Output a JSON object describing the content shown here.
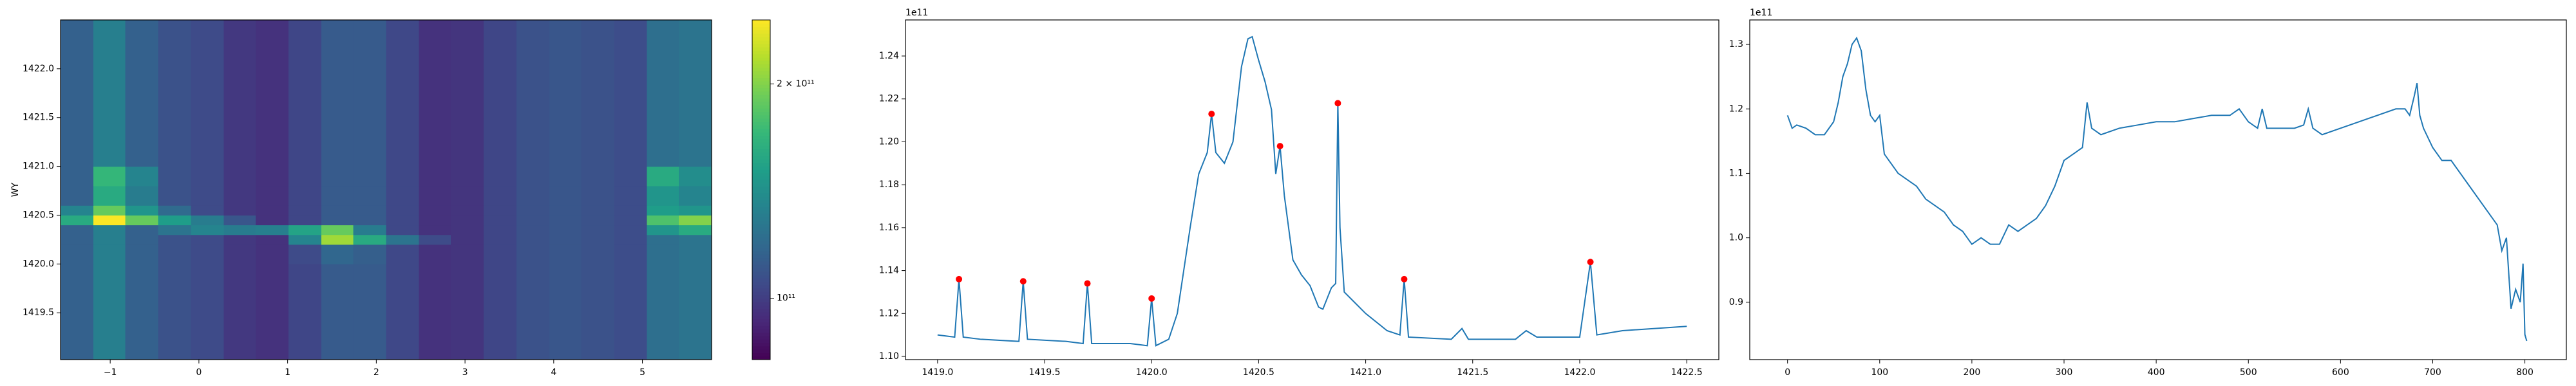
{
  "chart_data": [
    {
      "type": "heatmap",
      "ylabel": "WY",
      "colormap": "viridis",
      "x": [
        -1.56,
        -1.19,
        -0.83,
        -0.46,
        -0.09,
        0.28,
        0.64,
        1.01,
        1.38,
        1.74,
        2.11,
        2.48,
        2.84,
        3.21,
        3.58,
        3.95,
        4.31,
        4.68,
        5.05,
        5.41,
        5.78
      ],
      "y": [
        1419.02,
        1419.5,
        1420.0,
        1420.2,
        1420.3,
        1420.4,
        1420.5,
        1420.6,
        1420.8,
        1421.0,
        1421.5,
        1422.0,
        1422.5
      ],
      "z": [
        [
          115000000000.0,
          132000000000.0,
          115000000000.0,
          108000000000.0,
          105000000000.0,
          98000000000.0,
          96000000000.0,
          103000000000.0,
          112000000000.0,
          112000000000.0,
          104000000000.0,
          96000000000.0,
          97000000000.0,
          103000000000.0,
          108000000000.0,
          110000000000.0,
          108000000000.0,
          106000000000.0,
          122000000000.0,
          125000000000.0
        ],
        [
          115000000000.0,
          132000000000.0,
          115000000000.0,
          108000000000.0,
          105000000000.0,
          98000000000.0,
          96000000000.0,
          103000000000.0,
          112000000000.0,
          112000000000.0,
          104000000000.0,
          96000000000.0,
          97000000000.0,
          103000000000.0,
          108000000000.0,
          110000000000.0,
          108000000000.0,
          106000000000.0,
          122000000000.0,
          125000000000.0
        ],
        [
          115000000000.0,
          132000000000.0,
          115000000000.0,
          108000000000.0,
          105000000000.0,
          98000000000.0,
          96000000000.0,
          105000000000.0,
          118000000000.0,
          114000000000.0,
          104000000000.0,
          96000000000.0,
          97000000000.0,
          103000000000.0,
          108000000000.0,
          110000000000.0,
          108000000000.0,
          106000000000.0,
          122000000000.0,
          125000000000.0
        ],
        [
          115000000000.0,
          132000000000.0,
          115000000000.0,
          108000000000.0,
          105000000000.0,
          98000000000.0,
          96000000000.0,
          135000000000.0,
          210000000000.0,
          160000000000.0,
          125000000000.0,
          105000000000.0,
          97000000000.0,
          103000000000.0,
          108000000000.0,
          110000000000.0,
          108000000000.0,
          106000000000.0,
          122000000000.0,
          125000000000.0
        ],
        [
          115000000000.0,
          132000000000.0,
          115000000000.0,
          125000000000.0,
          135000000000.0,
          130000000000.0,
          132000000000.0,
          155000000000.0,
          190000000000.0,
          130000000000.0,
          104000000000.0,
          96000000000.0,
          97000000000.0,
          103000000000.0,
          108000000000.0,
          110000000000.0,
          108000000000.0,
          106000000000.0,
          145000000000.0,
          160000000000.0
        ],
        [
          160000000000.0,
          245000000000.0,
          190000000000.0,
          150000000000.0,
          130000000000.0,
          110000000000.0,
          96000000000.0,
          103000000000.0,
          112000000000.0,
          112000000000.0,
          104000000000.0,
          96000000000.0,
          97000000000.0,
          103000000000.0,
          108000000000.0,
          110000000000.0,
          108000000000.0,
          106000000000.0,
          180000000000.0,
          200000000000.0
        ],
        [
          135000000000.0,
          190000000000.0,
          145000000000.0,
          120000000000.0,
          105000000000.0,
          98000000000.0,
          96000000000.0,
          103000000000.0,
          112000000000.0,
          112000000000.0,
          104000000000.0,
          96000000000.0,
          97000000000.0,
          103000000000.0,
          108000000000.0,
          110000000000.0,
          108000000000.0,
          106000000000.0,
          150000000000.0,
          145000000000.0
        ],
        [
          115000000000.0,
          160000000000.0,
          130000000000.0,
          108000000000.0,
          105000000000.0,
          98000000000.0,
          96000000000.0,
          103000000000.0,
          112000000000.0,
          112000000000.0,
          104000000000.0,
          96000000000.0,
          97000000000.0,
          103000000000.0,
          108000000000.0,
          110000000000.0,
          108000000000.0,
          106000000000.0,
          145000000000.0,
          135000000000.0
        ],
        [
          115000000000.0,
          170000000000.0,
          135000000000.0,
          108000000000.0,
          105000000000.0,
          98000000000.0,
          96000000000.0,
          103000000000.0,
          112000000000.0,
          112000000000.0,
          104000000000.0,
          96000000000.0,
          97000000000.0,
          103000000000.0,
          108000000000.0,
          110000000000.0,
          108000000000.0,
          106000000000.0,
          160000000000.0,
          140000000000.0
        ],
        [
          115000000000.0,
          132000000000.0,
          115000000000.0,
          108000000000.0,
          105000000000.0,
          98000000000.0,
          96000000000.0,
          103000000000.0,
          112000000000.0,
          112000000000.0,
          104000000000.0,
          96000000000.0,
          97000000000.0,
          103000000000.0,
          108000000000.0,
          110000000000.0,
          108000000000.0,
          106000000000.0,
          122000000000.0,
          125000000000.0
        ],
        [
          115000000000.0,
          132000000000.0,
          115000000000.0,
          108000000000.0,
          105000000000.0,
          98000000000.0,
          96000000000.0,
          103000000000.0,
          112000000000.0,
          112000000000.0,
          104000000000.0,
          96000000000.0,
          97000000000.0,
          103000000000.0,
          108000000000.0,
          110000000000.0,
          108000000000.0,
          106000000000.0,
          122000000000.0,
          125000000000.0
        ],
        [
          115000000000.0,
          132000000000.0,
          115000000000.0,
          108000000000.0,
          105000000000.0,
          98000000000.0,
          96000000000.0,
          103000000000.0,
          112000000000.0,
          112000000000.0,
          104000000000.0,
          96000000000.0,
          97000000000.0,
          103000000000.0,
          108000000000.0,
          110000000000.0,
          108000000000.0,
          106000000000.0,
          122000000000.0,
          125000000000.0
        ]
      ],
      "xlim": [
        -1.56,
        5.78
      ],
      "xticks": [
        {
          "value": -1,
          "label": "−1"
        },
        0,
        1,
        2,
        3,
        4,
        5
      ],
      "ylim": [
        1419.02,
        1422.5
      ],
      "yticks": [
        1419.5,
        {
          "value": 1420,
          "label": "1420.0"
        },
        1420.5,
        {
          "value": 1421,
          "label": "1421.0"
        },
        1421.5,
        {
          "value": 1422,
          "label": "1422.0"
        }
      ],
      "colorbar": {
        "log": true,
        "lim": [
          82000000000.0,
          246000000000.0
        ],
        "ticks": [
          {
            "value": 100000000000.0,
            "label": "10¹¹"
          },
          {
            "value": 200000000000.0,
            "label": "2 × 10¹¹"
          }
        ]
      }
    },
    {
      "type": "line",
      "color": "#1f77b4",
      "offset_text": "1e11",
      "x": [
        1419.0,
        1419.08,
        1419.1,
        1419.12,
        1419.2,
        1419.38,
        1419.4,
        1419.42,
        1419.6,
        1419.68,
        1419.7,
        1419.72,
        1419.9,
        1419.98,
        1420.0,
        1420.02,
        1420.08,
        1420.12,
        1420.18,
        1420.22,
        1420.26,
        1420.28,
        1420.3,
        1420.34,
        1420.38,
        1420.42,
        1420.45,
        1420.47,
        1420.5,
        1420.53,
        1420.56,
        1420.58,
        1420.6,
        1420.62,
        1420.66,
        1420.7,
        1420.74,
        1420.78,
        1420.8,
        1420.84,
        1420.86,
        1420.87,
        1420.88,
        1420.9,
        1420.95,
        1421.0,
        1421.1,
        1421.16,
        1421.18,
        1421.2,
        1421.4,
        1421.45,
        1421.48,
        1421.7,
        1421.75,
        1421.8,
        1422.0,
        1422.05,
        1422.08,
        1422.2,
        1422.5
      ],
      "values": [
        1.11,
        1.109,
        1.136,
        1.109,
        1.108,
        1.107,
        1.135,
        1.108,
        1.107,
        1.106,
        1.134,
        1.106,
        1.106,
        1.105,
        1.127,
        1.105,
        1.108,
        1.12,
        1.16,
        1.185,
        1.195,
        1.213,
        1.195,
        1.19,
        1.2,
        1.235,
        1.248,
        1.249,
        1.238,
        1.228,
        1.215,
        1.185,
        1.198,
        1.175,
        1.145,
        1.138,
        1.133,
        1.123,
        1.122,
        1.132,
        1.134,
        1.218,
        1.16,
        1.13,
        1.125,
        1.12,
        1.112,
        1.11,
        1.136,
        1.109,
        1.108,
        1.113,
        1.108,
        1.108,
        1.112,
        1.109,
        1.109,
        1.144,
        1.11,
        1.112,
        1.114
      ],
      "peaks": {
        "color": "#ff0000",
        "x": [
          1419.1,
          1419.4,
          1419.7,
          1420.0,
          1420.28,
          1420.6,
          1420.87,
          1421.18,
          1422.05
        ],
        "values": [
          1.136,
          1.135,
          1.134,
          1.127,
          1.213,
          1.198,
          1.218,
          1.136,
          1.144
        ]
      },
      "xlim": [
        1418.85,
        1422.65
      ],
      "xticks": [
        {
          "value": 1419,
          "label": "1419.0"
        },
        1419.5,
        {
          "value": 1420,
          "label": "1420.0"
        },
        1420.5,
        {
          "value": 1421,
          "label": "1421.0"
        },
        1421.5,
        {
          "value": 1422,
          "label": "1422.0"
        },
        1422.5
      ],
      "ylim": [
        1.0985,
        1.2568
      ],
      "yticks": [
        {
          "value": 1.1,
          "label": "1.10"
        },
        1.12,
        1.14,
        1.16,
        1.18,
        {
          "value": 1.2,
          "label": "1.20"
        },
        1.22,
        1.24
      ]
    },
    {
      "type": "line",
      "color": "#1f77b4",
      "offset_text": "1e11",
      "x": [
        0,
        5,
        10,
        20,
        30,
        40,
        50,
        55,
        60,
        65,
        70,
        75,
        80,
        85,
        90,
        95,
        100,
        105,
        110,
        120,
        130,
        140,
        150,
        160,
        170,
        180,
        190,
        200,
        210,
        220,
        230,
        240,
        250,
        260,
        270,
        280,
        290,
        300,
        310,
        320,
        325,
        330,
        340,
        360,
        380,
        400,
        420,
        440,
        460,
        480,
        490,
        500,
        510,
        515,
        520,
        540,
        550,
        560,
        565,
        570,
        580,
        600,
        620,
        640,
        660,
        670,
        675,
        680,
        683,
        686,
        690,
        700,
        710,
        720,
        730,
        740,
        750,
        760,
        770,
        775,
        780,
        785,
        790,
        795,
        798,
        800,
        802
      ],
      "values": [
        1.19,
        1.17,
        1.175,
        1.17,
        1.16,
        1.16,
        1.18,
        1.21,
        1.25,
        1.27,
        1.3,
        1.31,
        1.29,
        1.23,
        1.19,
        1.18,
        1.19,
        1.13,
        1.12,
        1.1,
        1.09,
        1.08,
        1.06,
        1.05,
        1.04,
        1.02,
        1.01,
        0.99,
        1.0,
        0.99,
        0.99,
        1.02,
        1.01,
        1.02,
        1.03,
        1.05,
        1.08,
        1.12,
        1.13,
        1.14,
        1.21,
        1.17,
        1.16,
        1.17,
        1.175,
        1.18,
        1.18,
        1.185,
        1.19,
        1.19,
        1.2,
        1.18,
        1.17,
        1.2,
        1.17,
        1.17,
        1.17,
        1.175,
        1.2,
        1.17,
        1.16,
        1.17,
        1.18,
        1.19,
        1.2,
        1.2,
        1.19,
        1.22,
        1.24,
        1.19,
        1.17,
        1.14,
        1.12,
        1.12,
        1.1,
        1.08,
        1.06,
        1.04,
        1.02,
        0.98,
        1.0,
        0.89,
        0.92,
        0.9,
        0.96,
        0.85,
        0.84
      ],
      "xlim": [
        -41,
        845
      ],
      "xticks": [
        0,
        100,
        200,
        300,
        400,
        500,
        600,
        700,
        800
      ],
      "ylim": [
        0.811,
        1.338
      ],
      "yticks": [
        0.9,
        {
          "value": 1,
          "label": "1.0"
        },
        1.1,
        1.2,
        1.3
      ]
    }
  ]
}
